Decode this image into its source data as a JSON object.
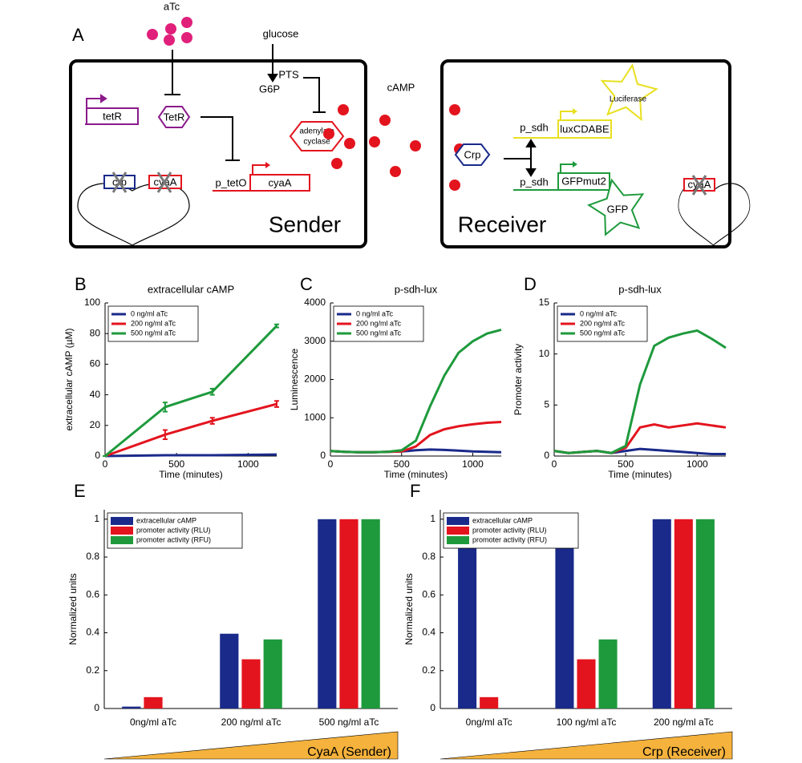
{
  "diagram": {
    "panel": "A",
    "sender": {
      "label": "Sender",
      "aTc": "aTc",
      "glucose": "glucose",
      "pts": "PTS",
      "g6p": "G6P",
      "tetR_gene": "tetR",
      "tetR_protein": "TetR",
      "adenylate_cyclase": [
        "adenylate",
        "cyclase"
      ],
      "promoter": "p_tetO",
      "cyaA_gene": "cyaA",
      "chromosome_genes": [
        "crp",
        "cyaA"
      ]
    },
    "cAMP": "cAMP",
    "receiver": {
      "label": "Receiver",
      "crp_protein": "Crp",
      "promoters": [
        "p_sdh",
        "p_sdh"
      ],
      "reporter_genes": [
        "luxCDABE",
        "GFPmut2"
      ],
      "reporter_proteins": [
        "Luciferase",
        "GFP"
      ],
      "chromosome_gene": "cyaA"
    }
  },
  "chart_data": [
    {
      "type": "line",
      "panel": "B",
      "title": "extracellular cAMP",
      "xlabel": "Time (minutes)",
      "ylabel": "extracellular cAMP (µM)",
      "x": [
        0,
        420,
        750,
        1200
      ],
      "xlim": [
        0,
        1200
      ],
      "xticks": [
        0,
        500,
        1000
      ],
      "ylim": [
        0,
        100
      ],
      "yticks": [
        0,
        20,
        40,
        60,
        80,
        100
      ],
      "legend": "upper left",
      "series": [
        {
          "name": "0 ng/ml aTc",
          "color": "#1a2a8a",
          "values": [
            0,
            0.5,
            0.5,
            1
          ]
        },
        {
          "name": "200 ng/ml aTc",
          "color": "#e3141e",
          "values": [
            0,
            14,
            23,
            34
          ],
          "errors": [
            0,
            3,
            2,
            2
          ]
        },
        {
          "name": "500 ng/ml aTc",
          "color": "#1e9a3c",
          "values": [
            0,
            32,
            42,
            85
          ],
          "errors": [
            0,
            3,
            2,
            1
          ]
        }
      ]
    },
    {
      "type": "line",
      "panel": "C",
      "title": "p-sdh-lux",
      "xlabel": "Time (minutes)",
      "ylabel": "Luminescence",
      "x": [
        0,
        100,
        200,
        300,
        400,
        500,
        600,
        700,
        800,
        900,
        1000,
        1100,
        1200
      ],
      "xlim": [
        0,
        1200
      ],
      "xticks": [
        0,
        500,
        1000
      ],
      "ylim": [
        0,
        4000
      ],
      "yticks": [
        0,
        1000,
        2000,
        3000,
        4000
      ],
      "legend": "upper left",
      "series": [
        {
          "name": "0 ng/ml aTc",
          "color": "#1a2a8a",
          "values": [
            130,
            110,
            100,
            100,
            110,
            120,
            150,
            170,
            160,
            140,
            120,
            110,
            100
          ]
        },
        {
          "name": "200 ng/ml aTc",
          "color": "#e3141e",
          "values": [
            130,
            110,
            100,
            100,
            110,
            120,
            250,
            550,
            700,
            780,
            830,
            870,
            890
          ]
        },
        {
          "name": "500 ng/ml aTc",
          "color": "#1e9a3c",
          "values": [
            130,
            110,
            100,
            100,
            110,
            150,
            400,
            1300,
            2100,
            2700,
            3000,
            3200,
            3300
          ]
        }
      ]
    },
    {
      "type": "line",
      "panel": "D",
      "title": "p-sdh-lux",
      "xlabel": "Time (minutes)",
      "ylabel": "Promoter activity",
      "x": [
        0,
        100,
        200,
        300,
        400,
        500,
        600,
        700,
        800,
        900,
        1000,
        1100,
        1200
      ],
      "xlim": [
        0,
        1200
      ],
      "xticks": [
        0,
        500,
        1000
      ],
      "ylim": [
        0,
        15
      ],
      "yticks": [
        0,
        5,
        10,
        15
      ],
      "legend": "upper left",
      "series": [
        {
          "name": "0 ng/ml aTc",
          "color": "#1a2a8a",
          "values": [
            0.5,
            0.3,
            0.4,
            0.5,
            0.3,
            0.5,
            0.7,
            0.6,
            0.5,
            0.4,
            0.3,
            0.2,
            0.2
          ]
        },
        {
          "name": "200 ng/ml aTc",
          "color": "#e3141e",
          "values": [
            0.5,
            0.3,
            0.4,
            0.5,
            0.3,
            0.8,
            2.8,
            3.1,
            2.8,
            3.0,
            3.2,
            3.0,
            2.8
          ]
        },
        {
          "name": "500 ng/ml aTc",
          "color": "#1e9a3c",
          "values": [
            0.5,
            0.3,
            0.4,
            0.5,
            0.3,
            1.0,
            7.0,
            10.8,
            11.6,
            12.0,
            12.3,
            11.5,
            10.6
          ]
        }
      ]
    },
    {
      "type": "bar",
      "panel": "E",
      "ylabel": "Normalized units",
      "annotation": "CyaA (Sender)",
      "categories": [
        "0ng/ml aTc",
        "200 ng/ml aTc",
        "500 ng/ml aTc"
      ],
      "ylim": [
        0,
        1.05
      ],
      "yticks": [
        0,
        0.2,
        0.4,
        0.6,
        0.8,
        1
      ],
      "legend": "upper left",
      "series": [
        {
          "name": "extracellular cAMP",
          "color": "#1a2a8a",
          "values": [
            0.01,
            0.395,
            1
          ]
        },
        {
          "name": "promoter activity (RLU)",
          "color": "#e3141e",
          "values": [
            0.06,
            0.26,
            1
          ]
        },
        {
          "name": "promoter activity (RFU)",
          "color": "#1e9a3c",
          "values": [
            0,
            0.365,
            1
          ]
        }
      ]
    },
    {
      "type": "bar",
      "panel": "F",
      "ylabel": "Normalized units",
      "annotation": "Crp (Receiver)",
      "categories": [
        "0ng/ml aTc",
        "100 ng/ml aTc",
        "200 ng/ml aTc"
      ],
      "ylim": [
        0,
        1.05
      ],
      "yticks": [
        0,
        0.2,
        0.4,
        0.6,
        0.8,
        1
      ],
      "legend": "upper left",
      "series": [
        {
          "name": "extracellular cAMP",
          "color": "#1a2a8a",
          "values": [
            0.895,
            0.88,
            1
          ]
        },
        {
          "name": "promoter activity (RLU)",
          "color": "#e3141e",
          "values": [
            0.06,
            0.26,
            1
          ]
        },
        {
          "name": "promoter activity (RFU)",
          "color": "#1e9a3c",
          "values": [
            0,
            0.365,
            1
          ]
        }
      ]
    }
  ]
}
